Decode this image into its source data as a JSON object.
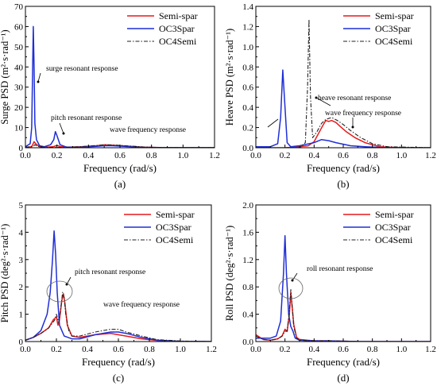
{
  "chart_data": [
    {
      "type": "line",
      "label": "(a)",
      "xlabel": "Frequency (rad/s)",
      "ylabel": "Surge PSD (m²·s·rad⁻¹)",
      "xlim": [
        0.0,
        1.2
      ],
      "ylim": [
        0,
        70
      ],
      "xticks": [
        "0.0",
        "0.2",
        "0.4",
        "0.6",
        "0.8",
        "1.0",
        "1.2"
      ],
      "yticks": [
        "0",
        "10",
        "20",
        "30",
        "40",
        "50",
        "60",
        "70"
      ],
      "legend": "top-right",
      "series": [
        {
          "name": "Semi-spar",
          "color": "#e8191c",
          "dash": "solid",
          "x": [
            0.0,
            0.04,
            0.055,
            0.065,
            0.09,
            0.14,
            0.18,
            0.2,
            0.22,
            0.27,
            0.35,
            0.45,
            0.5,
            0.55,
            0.65,
            0.75,
            0.85,
            1.0,
            1.2
          ],
          "y": [
            0.2,
            0.5,
            3.0,
            2.0,
            0.5,
            0.3,
            0.6,
            1.2,
            0.6,
            0.3,
            0.5,
            1.0,
            1.4,
            1.3,
            0.8,
            0.3,
            0.1,
            0.05,
            0.02
          ]
        },
        {
          "name": "OC3Spar",
          "color": "#1f2fd6",
          "dash": "solid",
          "x": [
            0.0,
            0.03,
            0.04,
            0.046,
            0.05,
            0.055,
            0.06,
            0.07,
            0.09,
            0.12,
            0.16,
            0.18,
            0.19,
            0.2,
            0.22,
            0.26,
            0.35,
            0.45,
            0.5,
            0.55,
            0.65,
            0.75,
            0.85,
            1.0,
            1.2
          ],
          "y": [
            0.5,
            2.0,
            10.0,
            40.0,
            60.0,
            40.0,
            12.0,
            4.0,
            1.0,
            0.5,
            1.5,
            4.0,
            8.0,
            6.0,
            1.5,
            0.3,
            0.3,
            0.7,
            1.0,
            1.0,
            0.6,
            0.2,
            0.1,
            0.05,
            0.02
          ]
        },
        {
          "name": "OC4Semi",
          "color": "#222222",
          "dash": "dashdot",
          "x": [
            0.0,
            0.05,
            0.06,
            0.08,
            0.15,
            0.25,
            0.35,
            0.45,
            0.5,
            0.55,
            0.65,
            0.75,
            0.85,
            1.0,
            1.2
          ],
          "y": [
            0.2,
            0.8,
            1.5,
            0.6,
            0.2,
            0.2,
            0.5,
            1.1,
            1.5,
            1.4,
            0.9,
            0.4,
            0.1,
            0.05,
            0.02
          ]
        }
      ],
      "annotations": [
        "surge resonant response",
        "pitch resonant response",
        "wave frequency response"
      ]
    },
    {
      "type": "line",
      "label": "(b)",
      "xlabel": "Frequency (rad/s)",
      "ylabel": "Heave PSD (m²·s·rad⁻¹)",
      "xlim": [
        0.0,
        1.2
      ],
      "ylim": [
        0.0,
        1.4
      ],
      "xticks": [
        "0.0",
        "0.2",
        "0.4",
        "0.6",
        "0.8",
        "1.0",
        "1.2"
      ],
      "yticks": [
        "0.0",
        "0.2",
        "0.4",
        "0.6",
        "0.8",
        "1.0",
        "1.2",
        "1.4"
      ],
      "legend": "top-right",
      "series": [
        {
          "name": "Semi-spar",
          "color": "#e8191c",
          "dash": "solid",
          "x": [
            0.0,
            0.2,
            0.3,
            0.36,
            0.4,
            0.43,
            0.46,
            0.48,
            0.5,
            0.52,
            0.55,
            0.58,
            0.62,
            0.68,
            0.75,
            0.85,
            1.0,
            1.2
          ],
          "y": [
            0.0,
            0.0,
            0.01,
            0.02,
            0.06,
            0.14,
            0.22,
            0.27,
            0.26,
            0.27,
            0.25,
            0.21,
            0.16,
            0.1,
            0.05,
            0.01,
            0.0,
            0.0
          ]
        },
        {
          "name": "OC3Spar",
          "color": "#1f2fd6",
          "dash": "solid",
          "x": [
            0.0,
            0.1,
            0.15,
            0.17,
            0.185,
            0.2,
            0.215,
            0.24,
            0.3,
            0.4,
            0.45,
            0.5,
            0.55,
            0.65,
            0.75,
            0.9,
            1.2
          ],
          "y": [
            0.01,
            0.01,
            0.04,
            0.3,
            0.77,
            0.4,
            0.05,
            0.01,
            0.02,
            0.05,
            0.08,
            0.07,
            0.05,
            0.02,
            0.01,
            0.0,
            0.0
          ]
        },
        {
          "name": "OC4Semi",
          "color": "#222222",
          "dash": "dashdot",
          "x": [
            0.0,
            0.3,
            0.34,
            0.355,
            0.365,
            0.375,
            0.39,
            0.42,
            0.45,
            0.48,
            0.52,
            0.56,
            0.6,
            0.65,
            0.72,
            0.8,
            0.9,
            1.2
          ],
          "y": [
            0.0,
            0.0,
            0.05,
            0.6,
            1.27,
            0.5,
            0.1,
            0.16,
            0.24,
            0.28,
            0.3,
            0.27,
            0.23,
            0.17,
            0.1,
            0.04,
            0.01,
            0.0
          ]
        }
      ],
      "annotations": [
        "heave resonant response",
        "wave frequency response"
      ]
    },
    {
      "type": "line",
      "label": "(c)",
      "xlabel": "Frequency (rad/s)",
      "ylabel": "Pitch PSD (deg²·s·rad⁻¹)",
      "xlim": [
        0.0,
        1.2
      ],
      "ylim": [
        0,
        5
      ],
      "xticks": [
        "0.0",
        "0.2",
        "0.4",
        "0.6",
        "0.8",
        "1.0",
        "1.2"
      ],
      "yticks": [
        "0",
        "1",
        "2",
        "3",
        "4",
        "5"
      ],
      "legend": "top-right",
      "series": [
        {
          "name": "Semi-spar",
          "color": "#e8191c",
          "dash": "solid",
          "x": [
            0.0,
            0.05,
            0.1,
            0.15,
            0.18,
            0.2,
            0.21,
            0.22,
            0.235,
            0.245,
            0.255,
            0.27,
            0.3,
            0.35,
            0.45,
            0.55,
            0.65,
            0.75,
            0.85,
            1.0,
            1.2
          ],
          "y": [
            0.05,
            0.15,
            0.3,
            0.5,
            0.8,
            0.9,
            0.6,
            0.8,
            1.5,
            1.75,
            1.4,
            0.6,
            0.2,
            0.15,
            0.25,
            0.3,
            0.2,
            0.1,
            0.04,
            0.01,
            0.0
          ]
        },
        {
          "name": "OC3Spar",
          "color": "#1f2fd6",
          "dash": "solid",
          "x": [
            0.0,
            0.05,
            0.1,
            0.14,
            0.16,
            0.175,
            0.185,
            0.195,
            0.205,
            0.22,
            0.25,
            0.3,
            0.35,
            0.45,
            0.55,
            0.6,
            0.65,
            0.75,
            0.85,
            1.0,
            1.2
          ],
          "y": [
            0.05,
            0.15,
            0.4,
            1.0,
            1.8,
            3.0,
            4.05,
            3.2,
            1.8,
            0.6,
            0.2,
            0.1,
            0.1,
            0.25,
            0.35,
            0.35,
            0.3,
            0.15,
            0.05,
            0.01,
            0.0
          ]
        },
        {
          "name": "OC4Semi",
          "color": "#222222",
          "dash": "dashdot",
          "x": [
            0.0,
            0.05,
            0.1,
            0.15,
            0.19,
            0.2,
            0.215,
            0.23,
            0.24,
            0.25,
            0.26,
            0.28,
            0.3,
            0.35,
            0.45,
            0.55,
            0.6,
            0.65,
            0.75,
            0.85,
            1.0,
            1.2
          ],
          "y": [
            0.05,
            0.15,
            0.3,
            0.5,
            0.8,
            1.0,
            0.7,
            1.3,
            1.8,
            1.6,
            1.0,
            0.4,
            0.2,
            0.2,
            0.35,
            0.45,
            0.45,
            0.35,
            0.2,
            0.07,
            0.02,
            0.0
          ]
        }
      ],
      "annotations": [
        "pitch resonant response",
        "wave frequency response"
      ]
    },
    {
      "type": "line",
      "label": "(d)",
      "xlabel": "Frequency (rad/s)",
      "ylabel": "Roll PSD (deg²·s·rad⁻¹)",
      "xlim": [
        0.0,
        1.2
      ],
      "ylim": [
        0.0,
        2.0
      ],
      "xticks": [
        "0.0",
        "0.2",
        "0.4",
        "0.6",
        "0.8",
        "1.0",
        "1.2"
      ],
      "yticks": [
        "0.0",
        "0.4",
        "0.8",
        "1.2",
        "1.6",
        "2.0"
      ],
      "legend": "top-right",
      "series": [
        {
          "name": "Semi-spar",
          "color": "#e8191c",
          "dash": "solid",
          "x": [
            0.0,
            0.05,
            0.1,
            0.15,
            0.18,
            0.2,
            0.215,
            0.23,
            0.24,
            0.25,
            0.26,
            0.28,
            0.3,
            0.4,
            0.5,
            0.7,
            1.0,
            1.2
          ],
          "y": [
            0.1,
            0.03,
            0.02,
            0.04,
            0.08,
            0.18,
            0.15,
            0.4,
            0.72,
            0.5,
            0.25,
            0.06,
            0.03,
            0.01,
            0.01,
            0.0,
            0.0,
            0.0
          ]
        },
        {
          "name": "OC3Spar",
          "color": "#1f2fd6",
          "dash": "solid",
          "x": [
            0.0,
            0.05,
            0.1,
            0.14,
            0.17,
            0.19,
            0.2,
            0.21,
            0.225,
            0.24,
            0.255,
            0.27,
            0.3,
            0.4,
            0.5,
            0.7,
            1.0,
            1.2
          ],
          "y": [
            0.05,
            0.05,
            0.05,
            0.08,
            0.3,
            1.0,
            1.55,
            1.0,
            0.4,
            0.22,
            0.15,
            0.05,
            0.02,
            0.01,
            0.01,
            0.0,
            0.0,
            0.0
          ]
        },
        {
          "name": "OC4Semi",
          "color": "#222222",
          "dash": "dashdot",
          "x": [
            0.0,
            0.05,
            0.1,
            0.15,
            0.18,
            0.2,
            0.215,
            0.23,
            0.24,
            0.25,
            0.26,
            0.28,
            0.3,
            0.4,
            0.5,
            0.7,
            1.0,
            1.2
          ],
          "y": [
            0.08,
            0.03,
            0.02,
            0.04,
            0.08,
            0.15,
            0.15,
            0.45,
            0.76,
            0.5,
            0.22,
            0.05,
            0.02,
            0.01,
            0.01,
            0.0,
            0.0,
            0.0
          ]
        }
      ],
      "annotations": [
        "roll resonant response"
      ]
    }
  ]
}
